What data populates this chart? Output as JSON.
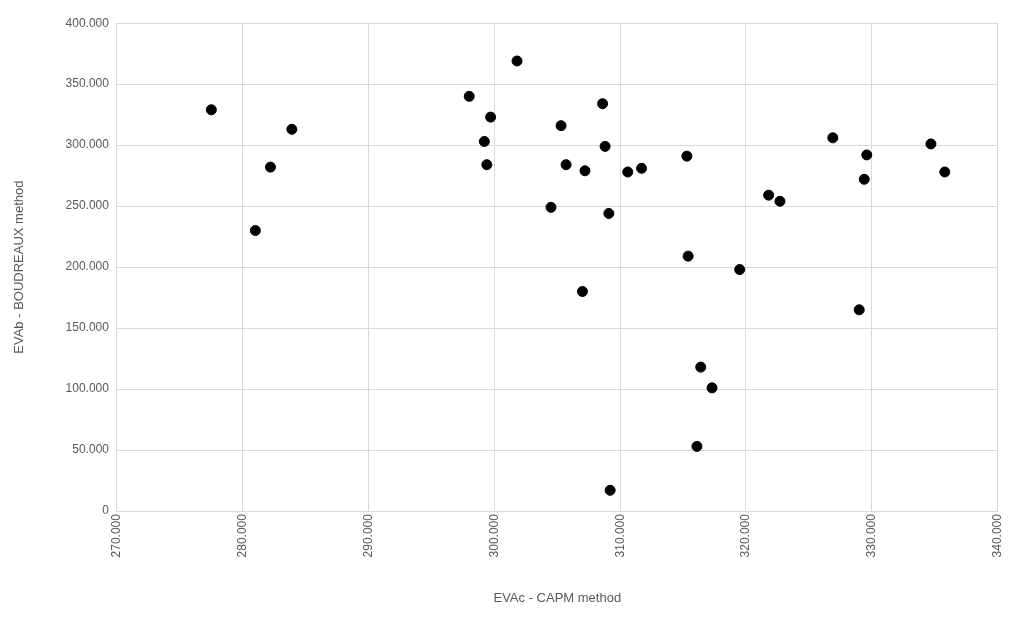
{
  "chart_data": {
    "type": "scatter",
    "xlabel": "EVAc - CAPM method",
    "ylabel": "EVAb - BOUDREAUX method",
    "x": [
      277500,
      281000,
      282200,
      283900,
      298000,
      299700,
      299200,
      299400,
      301800,
      304500,
      305300,
      305700,
      307000,
      307200,
      308600,
      308800,
      309100,
      309200,
      310600,
      311700,
      315300,
      315400,
      316100,
      316400,
      317300,
      319500,
      321800,
      322700,
      326900,
      329000,
      329400,
      329600,
      334700,
      335800
    ],
    "series": [
      {
        "color": "#000000",
        "values": [
          329000,
          230000,
          282000,
          313000,
          340000,
          323000,
          303000,
          284000,
          369000,
          249000,
          316000,
          284000,
          180000,
          279000,
          334000,
          299000,
          244000,
          17000,
          278000,
          281000,
          291000,
          209000,
          53000,
          118000,
          101000,
          198000,
          259000,
          254000,
          306000,
          165000,
          272000,
          292000,
          301000,
          278000
        ]
      }
    ],
    "xlim": [
      270000,
      340000
    ],
    "xticks": [
      {
        "value": 270000,
        "label": "270.000"
      },
      {
        "value": 280000,
        "label": "280.000"
      },
      {
        "value": 290000,
        "label": "290.000"
      },
      {
        "value": 300000,
        "label": "300.000"
      },
      {
        "value": 310000,
        "label": "310.000"
      },
      {
        "value": 320000,
        "label": "320.000"
      },
      {
        "value": 330000,
        "label": "330.000"
      },
      {
        "value": 340000,
        "label": "340.000"
      }
    ],
    "ylim": [
      0,
      400000
    ],
    "yticks": [
      0,
      {
        "value": 50000,
        "label": "50.000"
      },
      {
        "value": 100000,
        "label": "100.000"
      },
      {
        "value": 150000,
        "label": "150.000"
      },
      {
        "value": 200000,
        "label": "200.000"
      },
      {
        "value": 250000,
        "label": "250.000"
      },
      {
        "value": 300000,
        "label": "300.000"
      },
      {
        "value": 350000,
        "label": "350.000"
      },
      {
        "value": 400000,
        "label": "400.000"
      }
    ],
    "grid": true,
    "marker": "circle",
    "legend": false
  }
}
